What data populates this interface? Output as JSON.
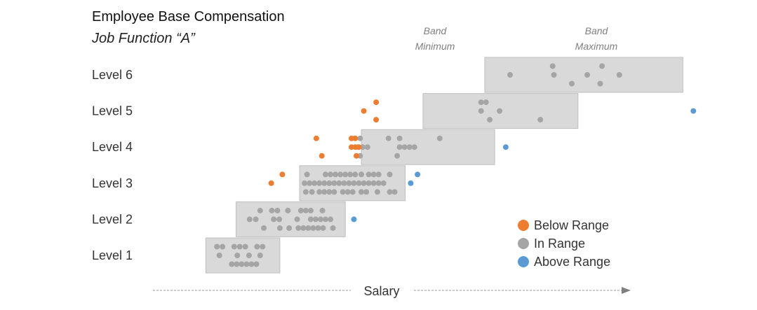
{
  "chart_data": {
    "type": "scatter",
    "title": "Employee Base Compensation",
    "subtitle": "Job Function “A”",
    "xlabel": "Salary",
    "xlim": [
      0,
      100
    ],
    "band_min_label": "Band\nMinimum",
    "band_max_label": "Band\nMaximum",
    "colors": {
      "below": "#ED7D31",
      "in": "#A5A5A5",
      "above": "#5B9BD5",
      "band": "#D9D9D9"
    },
    "legend": [
      {
        "key": "below",
        "label": "Below Range"
      },
      {
        "key": "in",
        "label": "In Range"
      },
      {
        "key": "above",
        "label": "Above Range"
      }
    ],
    "levels": [
      {
        "name": "Level 1",
        "band": [
          8.6,
          20.6
        ],
        "points": [
          {
            "x": 10.4,
            "r": 0,
            "s": "in"
          },
          {
            "x": 11.3,
            "r": 0,
            "s": "in"
          },
          {
            "x": 13.2,
            "r": 0,
            "s": "in"
          },
          {
            "x": 14.1,
            "r": 0,
            "s": "in"
          },
          {
            "x": 15.0,
            "r": 0,
            "s": "in"
          },
          {
            "x": 16.9,
            "r": 0,
            "s": "in"
          },
          {
            "x": 17.8,
            "r": 0,
            "s": "in"
          },
          {
            "x": 10.8,
            "r": 1,
            "s": "in"
          },
          {
            "x": 13.7,
            "r": 1,
            "s": "in"
          },
          {
            "x": 15.6,
            "r": 1,
            "s": "in"
          },
          {
            "x": 17.4,
            "r": 1,
            "s": "in"
          },
          {
            "x": 12.8,
            "r": 2,
            "s": "in"
          },
          {
            "x": 13.6,
            "r": 2,
            "s": "in"
          },
          {
            "x": 14.4,
            "r": 2,
            "s": "in"
          },
          {
            "x": 15.2,
            "r": 2,
            "s": "in"
          },
          {
            "x": 16.0,
            "r": 2,
            "s": "in"
          },
          {
            "x": 16.8,
            "r": 2,
            "s": "in"
          }
        ]
      },
      {
        "name": "Level 2",
        "band": [
          13.5,
          31.2
        ],
        "points": [
          {
            "x": 17.4,
            "r": 0,
            "s": "in"
          },
          {
            "x": 19.3,
            "r": 0,
            "s": "in"
          },
          {
            "x": 20.2,
            "r": 0,
            "s": "in"
          },
          {
            "x": 21.9,
            "r": 0,
            "s": "in"
          },
          {
            "x": 24.0,
            "r": 0,
            "s": "in"
          },
          {
            "x": 24.8,
            "r": 0,
            "s": "in"
          },
          {
            "x": 25.6,
            "r": 0,
            "s": "in"
          },
          {
            "x": 27.5,
            "r": 0,
            "s": "in"
          },
          {
            "x": 15.7,
            "r": 1,
            "s": "in"
          },
          {
            "x": 16.7,
            "r": 1,
            "s": "in"
          },
          {
            "x": 19.6,
            "r": 1,
            "s": "in"
          },
          {
            "x": 20.5,
            "r": 1,
            "s": "in"
          },
          {
            "x": 23.4,
            "r": 1,
            "s": "in"
          },
          {
            "x": 25.6,
            "r": 1,
            "s": "in"
          },
          {
            "x": 26.4,
            "r": 1,
            "s": "in"
          },
          {
            "x": 27.2,
            "r": 1,
            "s": "in"
          },
          {
            "x": 28.0,
            "r": 1,
            "s": "in"
          },
          {
            "x": 28.8,
            "r": 1,
            "s": "in"
          },
          {
            "x": 18.0,
            "r": 2,
            "s": "in"
          },
          {
            "x": 20.6,
            "r": 2,
            "s": "in"
          },
          {
            "x": 22.1,
            "r": 2,
            "s": "in"
          },
          {
            "x": 23.6,
            "r": 2,
            "s": "in"
          },
          {
            "x": 24.4,
            "r": 2,
            "s": "in"
          },
          {
            "x": 25.2,
            "r": 2,
            "s": "in"
          },
          {
            "x": 26.0,
            "r": 2,
            "s": "in"
          },
          {
            "x": 26.8,
            "r": 2,
            "s": "in"
          },
          {
            "x": 27.6,
            "r": 2,
            "s": "in"
          },
          {
            "x": 29.2,
            "r": 2,
            "s": "in"
          },
          {
            "x": 32.6,
            "r": 1,
            "s": "above"
          }
        ]
      },
      {
        "name": "Level 3",
        "band": [
          23.8,
          40.9
        ],
        "points": [
          {
            "x": 25.0,
            "r": 0,
            "s": "in"
          },
          {
            "x": 28.0,
            "r": 0,
            "s": "in"
          },
          {
            "x": 28.8,
            "r": 0,
            "s": "in"
          },
          {
            "x": 29.6,
            "r": 0,
            "s": "in"
          },
          {
            "x": 30.4,
            "r": 0,
            "s": "in"
          },
          {
            "x": 31.2,
            "r": 0,
            "s": "in"
          },
          {
            "x": 32.0,
            "r": 0,
            "s": "in"
          },
          {
            "x": 32.8,
            "r": 0,
            "s": "in"
          },
          {
            "x": 33.8,
            "r": 0,
            "s": "in"
          },
          {
            "x": 35.0,
            "r": 0,
            "s": "in"
          },
          {
            "x": 35.8,
            "r": 0,
            "s": "in"
          },
          {
            "x": 36.6,
            "r": 0,
            "s": "in"
          },
          {
            "x": 38.4,
            "r": 0,
            "s": "in"
          },
          {
            "x": 24.6,
            "r": 1,
            "s": "in"
          },
          {
            "x": 25.4,
            "r": 1,
            "s": "in"
          },
          {
            "x": 26.2,
            "r": 1,
            "s": "in"
          },
          {
            "x": 27.0,
            "r": 1,
            "s": "in"
          },
          {
            "x": 27.8,
            "r": 1,
            "s": "in"
          },
          {
            "x": 28.6,
            "r": 1,
            "s": "in"
          },
          {
            "x": 29.4,
            "r": 1,
            "s": "in"
          },
          {
            "x": 30.2,
            "r": 1,
            "s": "in"
          },
          {
            "x": 31.0,
            "r": 1,
            "s": "in"
          },
          {
            "x": 31.8,
            "r": 1,
            "s": "in"
          },
          {
            "x": 32.6,
            "r": 1,
            "s": "in"
          },
          {
            "x": 33.4,
            "r": 1,
            "s": "in"
          },
          {
            "x": 34.2,
            "r": 1,
            "s": "in"
          },
          {
            "x": 35.0,
            "r": 1,
            "s": "in"
          },
          {
            "x": 35.8,
            "r": 1,
            "s": "in"
          },
          {
            "x": 36.6,
            "r": 1,
            "s": "in"
          },
          {
            "x": 37.4,
            "r": 1,
            "s": "in"
          },
          {
            "x": 24.8,
            "r": 2,
            "s": "in"
          },
          {
            "x": 25.8,
            "r": 2,
            "s": "in"
          },
          {
            "x": 27.0,
            "r": 2,
            "s": "in"
          },
          {
            "x": 27.8,
            "r": 2,
            "s": "in"
          },
          {
            "x": 28.6,
            "r": 2,
            "s": "in"
          },
          {
            "x": 29.4,
            "r": 2,
            "s": "in"
          },
          {
            "x": 30.8,
            "r": 2,
            "s": "in"
          },
          {
            "x": 31.6,
            "r": 2,
            "s": "in"
          },
          {
            "x": 32.4,
            "r": 2,
            "s": "in"
          },
          {
            "x": 33.8,
            "r": 2,
            "s": "in"
          },
          {
            "x": 34.6,
            "r": 2,
            "s": "in"
          },
          {
            "x": 36.4,
            "r": 2,
            "s": "in"
          },
          {
            "x": 38.4,
            "r": 2,
            "s": "in"
          },
          {
            "x": 39.2,
            "r": 2,
            "s": "in"
          },
          {
            "x": 21.0,
            "r": 0,
            "s": "below"
          },
          {
            "x": 19.2,
            "r": 1,
            "s": "below"
          },
          {
            "x": 42.9,
            "r": 0,
            "s": "above"
          },
          {
            "x": 41.8,
            "r": 1,
            "s": "above"
          }
        ]
      },
      {
        "name": "Level 4",
        "band": [
          33.8,
          55.4
        ],
        "points": [
          {
            "x": 33.6,
            "r": 0,
            "s": "in"
          },
          {
            "x": 38.2,
            "r": 0,
            "s": "in"
          },
          {
            "x": 40.0,
            "r": 0,
            "s": "in"
          },
          {
            "x": 46.5,
            "r": 0,
            "s": "in"
          },
          {
            "x": 33.2,
            "r": 1,
            "s": "in"
          },
          {
            "x": 34.0,
            "r": 1,
            "s": "in"
          },
          {
            "x": 34.8,
            "r": 1,
            "s": "in"
          },
          {
            "x": 40.0,
            "r": 1,
            "s": "in"
          },
          {
            "x": 40.8,
            "r": 1,
            "s": "in"
          },
          {
            "x": 41.6,
            "r": 1,
            "s": "in"
          },
          {
            "x": 42.4,
            "r": 1,
            "s": "in"
          },
          {
            "x": 33.6,
            "r": 2,
            "s": "in"
          },
          {
            "x": 39.6,
            "r": 2,
            "s": "in"
          },
          {
            "x": 26.5,
            "r": 0,
            "s": "below"
          },
          {
            "x": 32.2,
            "r": 0,
            "s": "below"
          },
          {
            "x": 32.8,
            "r": 0,
            "s": "below"
          },
          {
            "x": 32.2,
            "r": 1,
            "s": "below"
          },
          {
            "x": 32.8,
            "r": 1,
            "s": "below"
          },
          {
            "x": 33.4,
            "r": 1,
            "s": "below"
          },
          {
            "x": 27.4,
            "r": 2,
            "s": "below"
          },
          {
            "x": 33.0,
            "r": 2,
            "s": "below"
          },
          {
            "x": 57.2,
            "r": 1,
            "s": "above"
          }
        ]
      },
      {
        "name": "Level 5",
        "band": [
          43.8,
          68.9
        ],
        "points": [
          {
            "x": 53.2,
            "r": 0,
            "s": "in"
          },
          {
            "x": 54.0,
            "r": 0,
            "s": "in"
          },
          {
            "x": 53.2,
            "r": 1,
            "s": "in"
          },
          {
            "x": 56.2,
            "r": 1,
            "s": "in"
          },
          {
            "x": 54.6,
            "r": 2,
            "s": "in"
          },
          {
            "x": 62.8,
            "r": 2,
            "s": "in"
          },
          {
            "x": 36.2,
            "r": 0,
            "s": "below"
          },
          {
            "x": 34.2,
            "r": 1,
            "s": "below"
          },
          {
            "x": 36.2,
            "r": 2,
            "s": "below"
          },
          {
            "x": 87.6,
            "r": 1,
            "s": "above"
          }
        ]
      },
      {
        "name": "Level 6",
        "band": [
          53.8,
          85.9
        ],
        "points": [
          {
            "x": 64.8,
            "r": 0,
            "s": "in"
          },
          {
            "x": 72.8,
            "r": 0,
            "s": "in"
          },
          {
            "x": 57.9,
            "r": 1,
            "s": "in"
          },
          {
            "x": 65.0,
            "r": 1,
            "s": "in"
          },
          {
            "x": 70.4,
            "r": 1,
            "s": "in"
          },
          {
            "x": 75.6,
            "r": 1,
            "s": "in"
          },
          {
            "x": 67.9,
            "r": 2,
            "s": "in"
          },
          {
            "x": 72.5,
            "r": 2,
            "s": "in"
          }
        ]
      }
    ]
  }
}
